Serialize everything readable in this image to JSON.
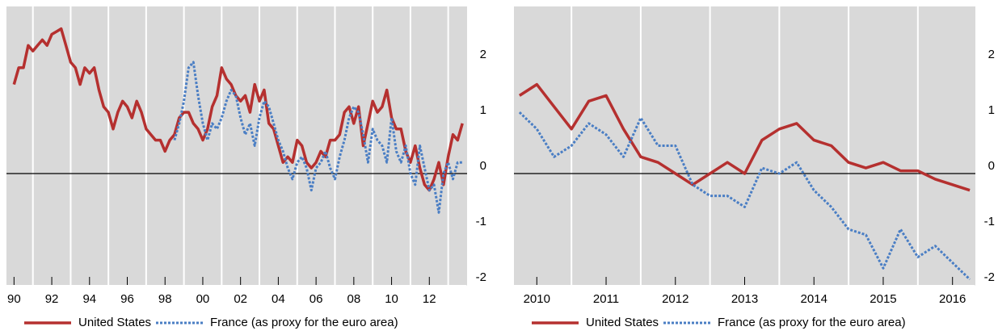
{
  "chart_data": {
    "charts": [
      {
        "type": "line",
        "x": [
          1990,
          1990.25,
          1990.5,
          1990.75,
          1991,
          1991.25,
          1991.5,
          1991.75,
          1992,
          1992.25,
          1992.5,
          1992.75,
          1993,
          1993.25,
          1993.5,
          1993.75,
          1994,
          1994.25,
          1994.5,
          1994.75,
          1995,
          1995.25,
          1995.5,
          1995.75,
          1996,
          1996.25,
          1996.5,
          1996.75,
          1997,
          1997.25,
          1997.5,
          1997.75,
          1998,
          1998.25,
          1998.5,
          1998.75,
          1999,
          1999.25,
          1999.5,
          1999.75,
          2000,
          2000.25,
          2000.5,
          2000.75,
          2001,
          2001.25,
          2001.5,
          2001.75,
          2002,
          2002.25,
          2002.5,
          2002.75,
          2003,
          2003.25,
          2003.5,
          2003.75,
          2004,
          2004.25,
          2004.5,
          2004.75,
          2005,
          2005.25,
          2005.5,
          2005.75,
          2006,
          2006.25,
          2006.5,
          2006.75,
          2007,
          2007.25,
          2007.5,
          2007.75,
          2008,
          2008.25,
          2008.5,
          2008.75,
          2009,
          2009.25,
          2009.5,
          2009.75,
          2010,
          2010.25,
          2010.5,
          2010.75,
          2011,
          2011.25,
          2011.5,
          2011.75,
          2012,
          2012.25,
          2012.5,
          2012.75,
          2013,
          2013.25,
          2013.5,
          2013.75
        ],
        "series": [
          {
            "name": "United States",
            "color": "#b5302f",
            "style": "solid",
            "values": [
              1.6,
              1.9,
              1.9,
              2.3,
              2.2,
              2.3,
              2.4,
              2.3,
              2.5,
              2.55,
              2.6,
              2.3,
              2.0,
              1.9,
              1.6,
              1.9,
              1.8,
              1.9,
              1.5,
              1.2,
              1.1,
              0.8,
              1.1,
              1.3,
              1.2,
              1.0,
              1.3,
              1.1,
              0.8,
              0.7,
              0.6,
              0.6,
              0.4,
              0.6,
              0.7,
              1.0,
              1.1,
              1.1,
              0.9,
              0.8,
              0.6,
              0.8,
              1.2,
              1.4,
              1.9,
              1.7,
              1.6,
              1.4,
              1.3,
              1.4,
              1.1,
              1.6,
              1.3,
              1.5,
              0.9,
              0.8,
              0.5,
              0.2,
              0.3,
              0.2,
              0.6,
              0.5,
              0.2,
              0.1,
              0.2,
              0.4,
              0.3,
              0.6,
              0.6,
              0.7,
              1.1,
              1.2,
              0.9,
              1.2,
              0.5,
              0.9,
              1.3,
              1.1,
              1.2,
              1.5,
              1.0,
              0.8,
              0.8,
              0.4,
              0.2,
              0.5,
              0.1,
              -0.2,
              -0.3,
              -0.1,
              0.2,
              -0.2,
              0.3,
              0.7,
              0.6,
              0.9
            ]
          },
          {
            "name": "France (as proxy for the euro area)",
            "color": "#4a7ec4",
            "style": "dotted",
            "values": [
              null,
              null,
              null,
              null,
              null,
              null,
              null,
              null,
              null,
              null,
              null,
              null,
              null,
              null,
              null,
              null,
              null,
              null,
              null,
              null,
              null,
              null,
              null,
              null,
              null,
              null,
              null,
              null,
              null,
              null,
              null,
              null,
              null,
              null,
              0.6,
              0.9,
              1.3,
              1.9,
              2.0,
              1.4,
              0.9,
              0.6,
              0.9,
              0.8,
              1.0,
              1.3,
              1.5,
              1.4,
              1.0,
              0.7,
              0.9,
              0.5,
              1.0,
              1.3,
              1.2,
              0.9,
              0.6,
              0.4,
              0.1,
              -0.1,
              0.2,
              0.3,
              0.1,
              -0.3,
              0.1,
              0.2,
              0.4,
              0.1,
              -0.1,
              0.3,
              0.6,
              1.0,
              1.2,
              1.1,
              0.7,
              0.2,
              0.8,
              0.6,
              0.5,
              0.2,
              1.0,
              0.4,
              0.2,
              0.5,
              0.0,
              -0.2,
              0.5,
              0.1,
              -0.3,
              -0.2,
              -0.7,
              0.0,
              0.2,
              -0.1,
              0.2,
              0.2
            ]
          }
        ],
        "xlim": [
          1989.6,
          2014.0
        ],
        "xticks": [
          {
            "value": 1990,
            "label": "90"
          },
          {
            "value": 1992,
            "label": "92"
          },
          {
            "value": 1994,
            "label": "94"
          },
          {
            "value": 1996,
            "label": "96"
          },
          {
            "value": 1998,
            "label": "98"
          },
          {
            "value": 2000,
            "label": "00"
          },
          {
            "value": 2002,
            "label": "02"
          },
          {
            "value": 2004,
            "label": "04"
          },
          {
            "value": 2006,
            "label": "06"
          },
          {
            "value": 2008,
            "label": "08"
          },
          {
            "value": 2010,
            "label": "10"
          },
          {
            "value": 2012,
            "label": "12"
          }
        ],
        "ylim": [
          -2,
          3
        ],
        "yticks": [
          -2,
          -1,
          0,
          1,
          2
        ],
        "grid": "x",
        "zero_line": true
      },
      {
        "type": "line",
        "x": [
          2009.75,
          2010,
          2010.25,
          2010.5,
          2010.75,
          2011,
          2011.25,
          2011.5,
          2011.75,
          2012,
          2012.25,
          2012.5,
          2012.75,
          2013,
          2013.25,
          2013.5,
          2013.75,
          2014,
          2014.25,
          2014.5,
          2014.75,
          2015,
          2015.25,
          2015.5,
          2015.75,
          2016,
          2016.25
        ],
        "series": [
          {
            "name": "United States",
            "color": "#b5302f",
            "style": "solid",
            "values": [
              1.4,
              1.6,
              1.2,
              0.8,
              1.3,
              1.4,
              0.8,
              0.3,
              0.2,
              0.0,
              -0.2,
              0.0,
              0.2,
              0.0,
              0.6,
              0.8,
              0.9,
              0.6,
              0.5,
              0.2,
              0.1,
              0.2,
              0.05,
              0.05,
              -0.1,
              -0.2,
              -0.3
            ]
          },
          {
            "name": "France (as proxy for the euro area)",
            "color": "#4a7ec4",
            "style": "dotted",
            "values": [
              1.1,
              0.8,
              0.3,
              0.5,
              0.9,
              0.7,
              0.3,
              1.0,
              0.5,
              0.5,
              -0.2,
              -0.4,
              -0.4,
              -0.6,
              0.1,
              0.0,
              0.2,
              -0.3,
              -0.6,
              -1.0,
              -1.1,
              -1.7,
              -1.0,
              -1.5,
              -1.3,
              -1.6,
              -1.9
            ]
          }
        ],
        "xlim": [
          2009.67,
          2016.33
        ],
        "xticks": [
          2010,
          2011,
          2012,
          2013,
          2014,
          2015,
          2016
        ],
        "ylim": [
          -2,
          3
        ],
        "yticks": [
          -2,
          -1,
          0,
          1,
          2
        ],
        "grid": "x",
        "zero_line": true
      }
    ]
  }
}
